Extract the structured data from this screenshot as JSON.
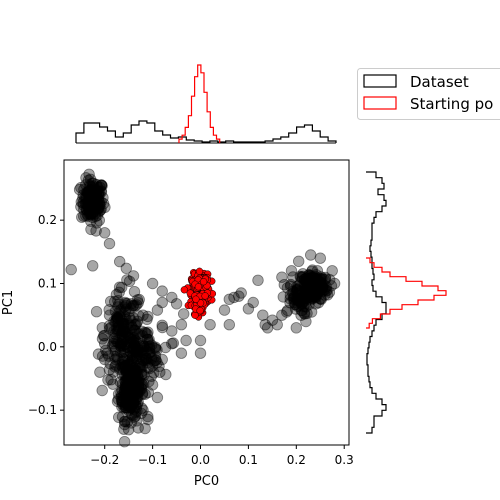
{
  "chart_data": {
    "type": "scatter",
    "xlabel": "PC0",
    "ylabel": "PC1",
    "xlim": [
      -0.285,
      0.31
    ],
    "ylim": [
      -0.155,
      0.295
    ],
    "x_ticks": [
      {
        "value": -0.2,
        "label": "−0.2"
      },
      {
        "value": -0.1,
        "label": "−0.1"
      },
      {
        "value": 0.0,
        "label": "0.0"
      },
      {
        "value": 0.1,
        "label": "0.1"
      },
      {
        "value": 0.2,
        "label": "0.2"
      },
      {
        "value": 0.3,
        "label": "0.3"
      }
    ],
    "y_ticks": [
      {
        "value": -0.1,
        "label": "−0.1"
      },
      {
        "value": 0.0,
        "label": "0.0"
      },
      {
        "value": 0.1,
        "label": "0.1"
      },
      {
        "value": 0.2,
        "label": "0.2"
      }
    ],
    "grid": false,
    "legend_position": "top-right",
    "series": [
      {
        "name": "Dataset",
        "color": "#000000",
        "alpha": 0.35,
        "clusters": [
          {
            "center": [
              -0.225,
              0.23
            ],
            "spread": [
              0.012,
              0.017
            ],
            "count": 130
          },
          {
            "center": [
              -0.145,
              -0.065
            ],
            "spread": [
              0.013,
              0.025
            ],
            "count": 220
          },
          {
            "center": [
              -0.16,
              0.02
            ],
            "spread": [
              0.02,
              0.035
            ],
            "count": 160
          },
          {
            "center": [
              -0.12,
              -0.01
            ],
            "spread": [
              0.02,
              0.02
            ],
            "count": 80
          },
          {
            "center": [
              0.235,
              0.095
            ],
            "spread": [
              0.016,
              0.014
            ],
            "count": 160
          },
          {
            "center": [
              0.2,
              0.075
            ],
            "spread": [
              0.015,
              0.012
            ],
            "count": 50
          }
        ],
        "points": [
          [
            -0.27,
            0.122
          ],
          [
            -0.218,
            0.183
          ],
          [
            -0.2,
            0.18
          ],
          [
            -0.19,
            0.163
          ],
          [
            -0.225,
            0.128
          ],
          [
            -0.155,
            0.124
          ],
          [
            -0.14,
            0.112
          ],
          [
            -0.1,
            0.1
          ],
          [
            -0.08,
            0.088
          ],
          [
            -0.06,
            0.078
          ],
          [
            -0.05,
            0.068
          ],
          [
            -0.08,
            0.07
          ],
          [
            -0.09,
            0.058
          ],
          [
            -0.11,
            0.048
          ],
          [
            -0.12,
            0.05
          ],
          [
            -0.08,
            0.034
          ],
          [
            -0.06,
            0.025
          ],
          [
            -0.04,
            0.035
          ],
          [
            -0.035,
            0.052
          ],
          [
            -0.03,
            0.01
          ],
          [
            -0.06,
            0.005
          ],
          [
            -0.04,
            -0.01
          ],
          [
            -0.08,
            -0.02
          ],
          [
            -0.1,
            -0.03
          ],
          [
            -0.2,
            -0.02
          ],
          [
            -0.21,
            -0.04
          ],
          [
            -0.205,
            0.03
          ],
          [
            -0.19,
            0.05
          ],
          [
            -0.12,
            -0.1
          ],
          [
            -0.11,
            -0.11
          ],
          [
            -0.09,
            -0.08
          ],
          [
            -0.16,
            -0.13
          ],
          [
            -0.13,
            -0.128
          ],
          [
            -0.085,
            -0.04
          ],
          [
            -0.1,
            -0.06
          ],
          [
            -0.15,
            0.055
          ],
          [
            -0.2,
            0.005
          ],
          [
            -0.195,
            -0.01
          ],
          [
            0.0,
            -0.01
          ],
          [
            0.0,
            0.01
          ],
          [
            0.02,
            0.035
          ],
          [
            0.05,
            0.058
          ],
          [
            0.06,
            0.075
          ],
          [
            0.07,
            0.078
          ],
          [
            0.08,
            0.08
          ],
          [
            0.085,
            0.085
          ],
          [
            0.12,
            0.105
          ],
          [
            0.13,
            0.05
          ],
          [
            0.14,
            0.03
          ],
          [
            0.135,
            0.035
          ],
          [
            0.15,
            0.042
          ],
          [
            0.17,
            0.05
          ],
          [
            0.18,
            0.055
          ],
          [
            0.2,
            0.03
          ],
          [
            0.21,
            0.05
          ],
          [
            0.22,
            0.04
          ],
          [
            0.17,
            0.11
          ],
          [
            0.19,
            0.12
          ],
          [
            0.205,
            0.135
          ],
          [
            0.23,
            0.145
          ],
          [
            0.25,
            0.14
          ],
          [
            0.275,
            0.12
          ],
          [
            0.28,
            0.1
          ],
          [
            0.06,
            0.035
          ],
          [
            0.16,
            0.035
          ],
          [
            0.1,
            0.06
          ],
          [
            0.11,
            0.07
          ]
        ],
        "marginal_x_counts": [
          0.5,
          1,
          1,
          0.8,
          0.6,
          0.3,
          0.5,
          0.9,
          1.1,
          1.0,
          0.6,
          0.4,
          0.25,
          0.3,
          0.15,
          0.1,
          0.05,
          0.1,
          0.05,
          0.1,
          0.05,
          0.05,
          0.05,
          0.05,
          0.1,
          0.2,
          0.3,
          0.5,
          0.8,
          0.9,
          0.6,
          0.3,
          0.1
        ],
        "marginal_y_counts": [
          0.5,
          0.8,
          0.9,
          0.6,
          0.9,
          1.0,
          0.8,
          0.5,
          0.4,
          0.3,
          0.3,
          0.3,
          0.25,
          0.2,
          0.25,
          0.3,
          0.3,
          0.35,
          0.4,
          0.3,
          0.35,
          0.5,
          0.8,
          1.0,
          1.0,
          0.8,
          0.5,
          0.4,
          0.3,
          0.2,
          0.15,
          0.1,
          0.05,
          0.05,
          0.1,
          0.1,
          0.15,
          0.2,
          0.3,
          0.5,
          0.8,
          1.0,
          0.8,
          0.4,
          0.4,
          0.3
        ]
      },
      {
        "name": "Starting po",
        "color": "#ff0000",
        "alpha": 1.0,
        "clusters": [
          {
            "center": [
              0.0,
              0.088
            ],
            "spread": [
              0.009,
              0.013
            ],
            "count": 380
          }
        ],
        "points": [],
        "marginal_x_counts": [
          0.05,
          0.1,
          0.2,
          0.35,
          0.6,
          0.85,
          1.0,
          0.9,
          0.65,
          0.4,
          0.2,
          0.1,
          0.05
        ],
        "marginal_y_counts": [
          0.05,
          0.1,
          0.2,
          0.3,
          0.5,
          0.7,
          0.9,
          1.0,
          0.85,
          0.65,
          0.45,
          0.3,
          0.18,
          0.08,
          0.04
        ]
      }
    ]
  }
}
